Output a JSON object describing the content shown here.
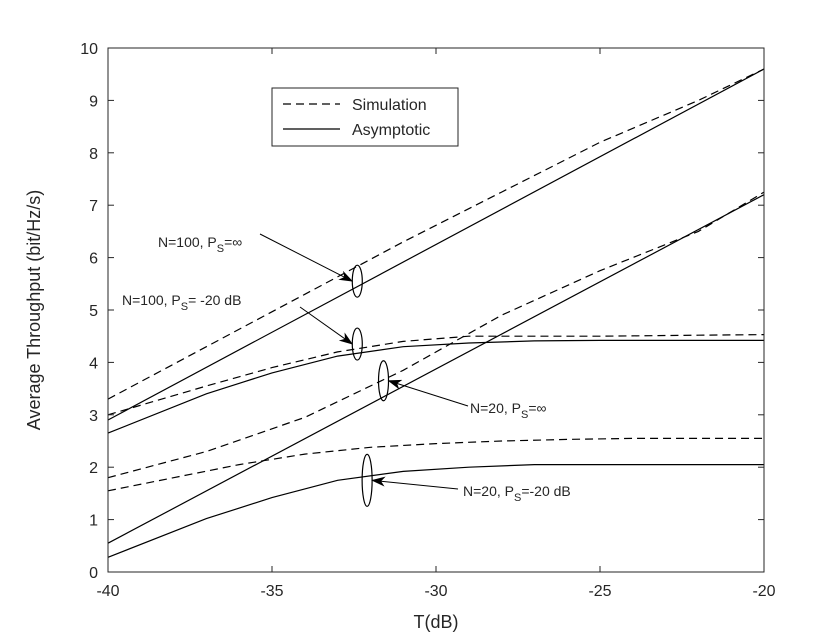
{
  "chart_data": {
    "type": "line",
    "xlabel": "T(dB)",
    "ylabel": "Average Throughput (bit/Hz/s)",
    "xlim": [
      -40,
      -20
    ],
    "ylim": [
      0,
      10
    ],
    "xticks": [
      -40,
      -35,
      -30,
      -25,
      -20
    ],
    "yticks": [
      0,
      1,
      2,
      3,
      4,
      5,
      6,
      7,
      8,
      9,
      10
    ],
    "grid": false,
    "legend_position": "top-center",
    "legend": [
      {
        "label": "Simulation",
        "style": "dashed"
      },
      {
        "label": "Asymptotic",
        "style": "solid"
      }
    ],
    "series": [
      {
        "group": "N=100, PS=inf",
        "style": "dashed",
        "x": [
          -40,
          -37,
          -34,
          -31,
          -28,
          -25,
          -22,
          -20
        ],
        "y": [
          3.3,
          4.3,
          5.3,
          6.3,
          7.25,
          8.2,
          9.0,
          9.6
        ]
      },
      {
        "group": "N=100, PS=inf",
        "style": "solid",
        "x": [
          -40,
          -20
        ],
        "y": [
          2.9,
          9.6
        ]
      },
      {
        "group": "N=100, PS=-20 dB",
        "style": "dashed",
        "x": [
          -40,
          -37,
          -35,
          -33,
          -31,
          -29,
          -27,
          -25,
          -22,
          -20
        ],
        "y": [
          3.0,
          3.55,
          3.9,
          4.2,
          4.4,
          4.5,
          4.5,
          4.5,
          4.52,
          4.53
        ]
      },
      {
        "group": "N=100, PS=-20 dB",
        "style": "solid",
        "x": [
          -40,
          -37,
          -35,
          -33,
          -31,
          -29,
          -27,
          -25,
          -22,
          -20
        ],
        "y": [
          2.65,
          3.4,
          3.8,
          4.12,
          4.3,
          4.37,
          4.41,
          4.42,
          4.42,
          4.42
        ]
      },
      {
        "group": "N=20, PS=inf",
        "style": "dashed",
        "x": [
          -40,
          -37,
          -34,
          -31,
          -28,
          -25,
          -22,
          -20
        ],
        "y": [
          1.8,
          2.3,
          2.95,
          3.85,
          4.9,
          5.75,
          6.5,
          7.25
        ]
      },
      {
        "group": "N=20, PS=inf",
        "style": "solid",
        "x": [
          -40,
          -20
        ],
        "y": [
          0.55,
          7.2
        ]
      },
      {
        "group": "N=20, PS=-20 dB",
        "style": "dashed",
        "x": [
          -40,
          -38,
          -36,
          -34,
          -32,
          -30,
          -28,
          -26,
          -24,
          -22,
          -20
        ],
        "y": [
          1.55,
          1.8,
          2.05,
          2.25,
          2.38,
          2.45,
          2.5,
          2.53,
          2.55,
          2.55,
          2.55
        ]
      },
      {
        "group": "N=20, PS=-20 dB",
        "style": "solid",
        "x": [
          -40,
          -37,
          -35,
          -33,
          -31,
          -29,
          -27,
          -25,
          -22,
          -20
        ],
        "y": [
          0.28,
          1.02,
          1.42,
          1.75,
          1.92,
          2.0,
          2.05,
          2.05,
          2.05,
          2.05
        ]
      }
    ],
    "annotations": [
      {
        "text": "N=100, P",
        "sub": "S",
        "tail": "=∞",
        "target": [
          -32.4,
          5.55
        ]
      },
      {
        "text": "N=100, P",
        "sub": "S",
        "tail": "= -20 dB",
        "target": [
          -32.4,
          4.35
        ]
      },
      {
        "text": "N=20, P",
        "sub": "S",
        "tail": "=∞",
        "target": [
          -31.6,
          3.65
        ]
      },
      {
        "text": "N=20, P",
        "sub": "S",
        "tail": "=-20 dB",
        "target": [
          -32.1,
          1.75
        ]
      }
    ]
  }
}
